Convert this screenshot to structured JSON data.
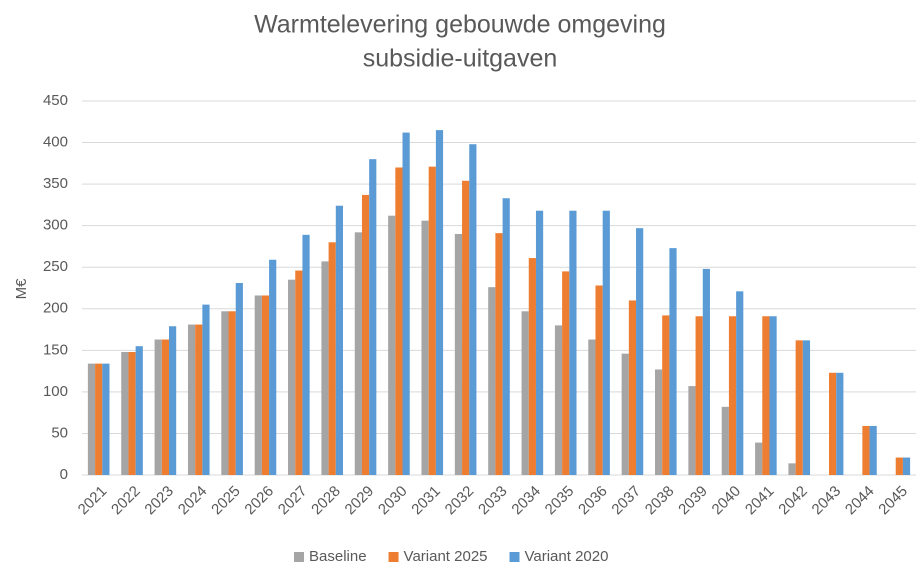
{
  "chart_data": {
    "type": "bar",
    "title": [
      "Warmtelevering gebouwde omgeving",
      "subsidie-uitgaven"
    ],
    "y_label": "M€",
    "categories": [
      "2021",
      "2022",
      "2023",
      "2024",
      "2025",
      "2026",
      "2027",
      "2028",
      "2029",
      "2030",
      "2031",
      "2032",
      "2033",
      "2034",
      "2035",
      "2036",
      "2037",
      "2038",
      "2039",
      "2040",
      "2041",
      "2042",
      "2043",
      "2044",
      "2045"
    ],
    "series": [
      {
        "name": "Baseline",
        "color": "#a5a5a5",
        "values": [
          134,
          148,
          163,
          181,
          197,
          216,
          235,
          257,
          292,
          312,
          306,
          290,
          226,
          197,
          180,
          163,
          146,
          127,
          107,
          82,
          39,
          14,
          0,
          0,
          0
        ]
      },
      {
        "name": "Variant 2025",
        "color": "#ed7d31",
        "values": [
          134,
          148,
          163,
          181,
          197,
          216,
          246,
          280,
          337,
          370,
          371,
          354,
          291,
          261,
          245,
          228,
          210,
          192,
          191,
          191,
          191,
          162,
          123,
          59,
          21
        ]
      },
      {
        "name": "Variant 2020",
        "color": "#5b9bd5",
        "values": [
          134,
          155,
          179,
          205,
          231,
          259,
          289,
          324,
          380,
          412,
          415,
          398,
          333,
          318,
          318,
          318,
          297,
          273,
          248,
          221,
          191,
          162,
          123,
          59,
          21
        ]
      }
    ],
    "ylim": [
      0,
      450
    ],
    "yticks": [
      0,
      50,
      100,
      150,
      200,
      250,
      300,
      350,
      400,
      450
    ],
    "grid": true,
    "legend": "bottom"
  }
}
